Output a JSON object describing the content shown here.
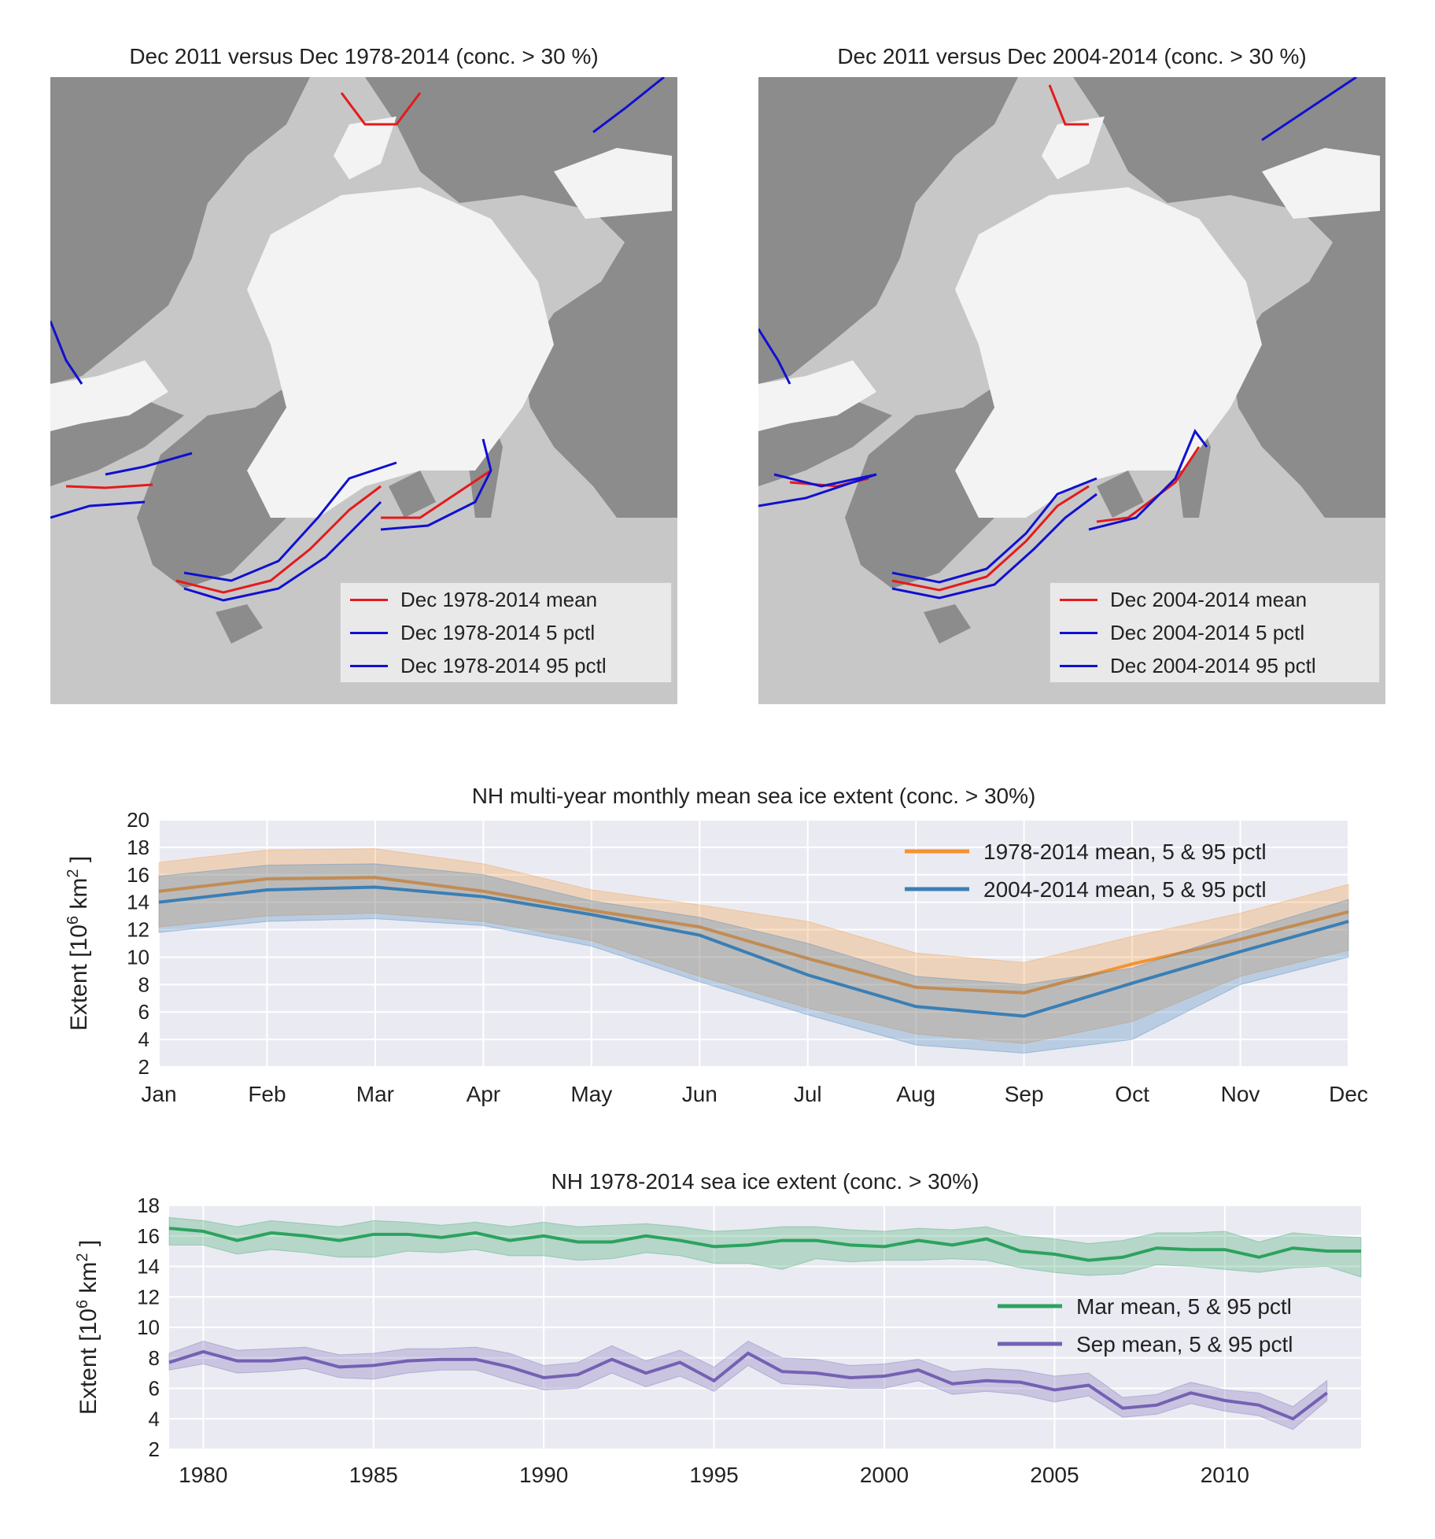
{
  "maps": [
    {
      "title": "Dec 2011 versus Dec 1978-2014 (conc. > 30 %)",
      "legend": [
        {
          "label": "Dec 1978-2014 mean",
          "color": "#e41a1c"
        },
        {
          "label": "Dec 1978-2014 5 pctl",
          "color": "#1010d0"
        },
        {
          "label": "Dec 1978-2014 95 pctl",
          "color": "#1010d0"
        }
      ]
    },
    {
      "title": "Dec 2011 versus Dec 2004-2014 (conc. > 30 %)",
      "legend": [
        {
          "label": "Dec 2004-2014 mean",
          "color": "#e41a1c"
        },
        {
          "label": "Dec 2004-2014 5 pctl",
          "color": "#1010d0"
        },
        {
          "label": "Dec 2004-2014 95 pctl",
          "color": "#1010d0"
        }
      ]
    }
  ],
  "chart_data": [
    {
      "type": "line",
      "title": "NH multi-year monthly mean sea ice extent (conc. > 30%)",
      "ylabel": "Extent [10^6 km^2]",
      "ylabel_parts": {
        "pre": "Extent [10",
        "exp1": "6",
        "mid": " km",
        "exp2": "2",
        "post": " ]"
      },
      "categories": [
        "Jan",
        "Feb",
        "Mar",
        "Apr",
        "May",
        "Jun",
        "Jul",
        "Aug",
        "Sep",
        "Oct",
        "Nov",
        "Dec"
      ],
      "ylim": [
        2,
        20
      ],
      "yticks": [
        2,
        4,
        6,
        8,
        10,
        12,
        14,
        16,
        18,
        20
      ],
      "grid": true,
      "background": "#eaeaf2",
      "legend_position": "top-right",
      "series": [
        {
          "name": "1978-2014 mean, 5 & 95 pctl",
          "color": "#f5922f",
          "values": [
            14.8,
            15.7,
            15.8,
            14.8,
            13.4,
            12.2,
            9.9,
            7.8,
            7.4,
            9.5,
            11.3,
            13.3
          ],
          "p5": [
            12.2,
            13.0,
            13.2,
            12.6,
            11.2,
            8.6,
            6.3,
            4.4,
            3.7,
            5.3,
            8.6,
            10.5
          ],
          "p95": [
            16.9,
            17.8,
            17.9,
            16.8,
            14.9,
            13.8,
            12.6,
            10.3,
            9.6,
            11.5,
            13.2,
            15.3
          ]
        },
        {
          "name": "2004-2014 mean, 5 & 95 pctl",
          "color": "#3a7fb6",
          "values": [
            14.0,
            14.9,
            15.1,
            14.4,
            13.1,
            11.6,
            8.7,
            6.4,
            5.7,
            8.1,
            10.4,
            12.6
          ],
          "p5": [
            11.8,
            12.6,
            12.8,
            12.3,
            10.8,
            8.2,
            5.8,
            3.6,
            3.0,
            4.0,
            8.0,
            10.0
          ],
          "p95": [
            15.9,
            16.7,
            16.8,
            16.0,
            14.1,
            12.9,
            11.0,
            8.6,
            8.0,
            9.2,
            11.8,
            14.2
          ]
        }
      ]
    },
    {
      "type": "line",
      "title": "NH 1978-2014 sea ice extent (conc. > 30%)",
      "ylabel": "Extent [10^6 km^2]",
      "ylabel_parts": {
        "pre": "Extent [10",
        "exp1": "6",
        "mid": " km",
        "exp2": "2",
        "post": " ]"
      },
      "xlim": [
        1979,
        2014
      ],
      "xticks": [
        1980,
        1985,
        1990,
        1995,
        2000,
        2005,
        2010
      ],
      "ylim": [
        2,
        18
      ],
      "yticks": [
        2,
        4,
        6,
        8,
        10,
        12,
        14,
        16,
        18
      ],
      "grid": true,
      "background": "#eaeaf2",
      "legend_position": "center-right",
      "series": [
        {
          "name": "Mar mean, 5 & 95 pctl",
          "color": "#2ca25f",
          "x": [
            1979,
            1980,
            1981,
            1982,
            1983,
            1984,
            1985,
            1986,
            1987,
            1988,
            1989,
            1990,
            1991,
            1992,
            1993,
            1994,
            1995,
            1996,
            1997,
            1998,
            1999,
            2000,
            2001,
            2002,
            2003,
            2004,
            2005,
            2006,
            2007,
            2008,
            2009,
            2010,
            2011,
            2012,
            2013,
            2014
          ],
          "values": [
            16.5,
            16.3,
            15.7,
            16.2,
            16.0,
            15.7,
            16.1,
            16.1,
            15.9,
            16.2,
            15.7,
            16.0,
            15.6,
            15.6,
            16.0,
            15.7,
            15.3,
            15.4,
            15.7,
            15.7,
            15.4,
            15.3,
            15.7,
            15.4,
            15.8,
            15.0,
            14.8,
            14.4,
            14.6,
            15.2,
            15.1,
            15.1,
            14.6,
            15.2,
            15.0,
            15.0
          ],
          "p5": [
            15.4,
            15.4,
            14.8,
            15.1,
            14.9,
            14.6,
            14.6,
            15.0,
            14.9,
            15.1,
            14.7,
            14.7,
            14.4,
            14.5,
            14.9,
            14.7,
            14.2,
            14.2,
            13.8,
            14.5,
            14.3,
            14.4,
            14.4,
            14.5,
            14.4,
            13.9,
            13.6,
            13.4,
            13.5,
            14.1,
            14.0,
            13.8,
            13.6,
            13.9,
            14.0,
            13.3
          ],
          "p95": [
            17.2,
            17.0,
            16.6,
            17.0,
            16.8,
            16.6,
            17.0,
            16.9,
            16.7,
            16.9,
            16.6,
            16.9,
            16.6,
            16.7,
            16.8,
            16.6,
            16.3,
            16.4,
            16.6,
            16.6,
            16.4,
            16.3,
            16.5,
            16.4,
            16.6,
            16.0,
            15.8,
            15.5,
            15.7,
            16.2,
            16.2,
            16.3,
            15.6,
            16.2,
            16.0,
            15.9
          ]
        },
        {
          "name": "Sep mean, 5 & 95 pctl",
          "color": "#7461b3",
          "x": [
            1979,
            1980,
            1981,
            1982,
            1983,
            1984,
            1985,
            1986,
            1987,
            1988,
            1989,
            1990,
            1991,
            1992,
            1993,
            1994,
            1995,
            1996,
            1997,
            1998,
            1999,
            2000,
            2001,
            2002,
            2003,
            2004,
            2005,
            2006,
            2007,
            2008,
            2009,
            2010,
            2011,
            2012,
            2013
          ],
          "values": [
            7.7,
            8.4,
            7.8,
            7.8,
            8.0,
            7.4,
            7.5,
            7.8,
            7.9,
            7.9,
            7.4,
            6.7,
            6.9,
            7.9,
            7.0,
            7.7,
            6.5,
            8.3,
            7.1,
            7.0,
            6.7,
            6.8,
            7.2,
            6.3,
            6.5,
            6.4,
            5.9,
            6.2,
            4.7,
            4.9,
            5.7,
            5.2,
            4.9,
            4.0,
            5.7
          ],
          "p5": [
            7.2,
            7.6,
            7.0,
            7.1,
            7.3,
            6.7,
            6.6,
            7.0,
            7.2,
            7.2,
            6.5,
            5.9,
            6.0,
            7.0,
            6.1,
            6.8,
            5.8,
            7.5,
            6.3,
            6.2,
            6.0,
            6.0,
            6.5,
            5.6,
            5.8,
            5.6,
            5.1,
            5.5,
            4.1,
            4.3,
            5.0,
            4.5,
            4.2,
            3.3,
            5.2
          ],
          "p95": [
            8.3,
            9.1,
            8.5,
            8.6,
            8.7,
            8.2,
            8.3,
            8.6,
            8.6,
            8.7,
            8.3,
            7.5,
            7.7,
            8.8,
            7.8,
            8.5,
            7.4,
            9.1,
            8.0,
            7.9,
            7.5,
            7.6,
            7.9,
            7.1,
            7.3,
            7.2,
            6.8,
            7.0,
            5.4,
            5.6,
            6.4,
            5.9,
            5.7,
            4.8,
            6.5
          ]
        }
      ]
    }
  ]
}
